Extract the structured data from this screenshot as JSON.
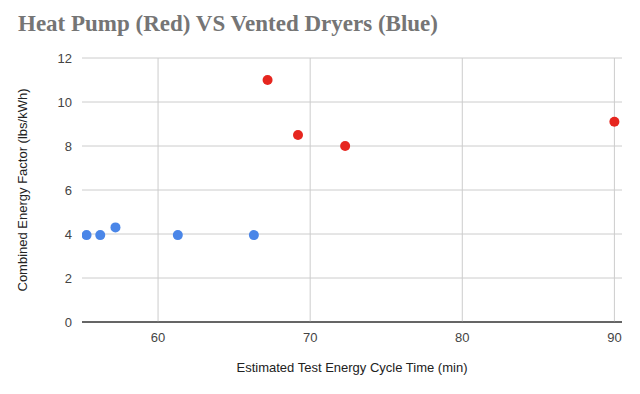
{
  "chart_data": {
    "type": "scatter",
    "title": "Heat Pump (Red) VS Vented Dryers (Blue)",
    "x_label": "Estimated Test Energy Cycle Time (min)",
    "y_label": "Combined Energy Factor (lbs/kWh)",
    "series": [
      {
        "name": "Heat Pump",
        "color": "#e6261f",
        "marker": "circle",
        "x": [
          67.2,
          69.2,
          72.3,
          90
        ],
        "values": [
          11,
          8.5,
          8,
          9.1
        ]
      },
      {
        "name": "Vented",
        "color": "#4a86e8",
        "marker": "circle",
        "x": [
          55.3,
          56.2,
          57.2,
          61.3,
          66.3
        ],
        "values": [
          3.95,
          3.95,
          4.3,
          3.95,
          3.95
        ]
      }
    ],
    "xlim": [
      55,
      90.5
    ],
    "xticks": [
      60,
      70,
      80,
      90
    ],
    "ylim": [
      0,
      12
    ],
    "yticks": [
      0,
      2,
      4,
      6,
      8,
      10,
      12
    ],
    "grid": true
  }
}
